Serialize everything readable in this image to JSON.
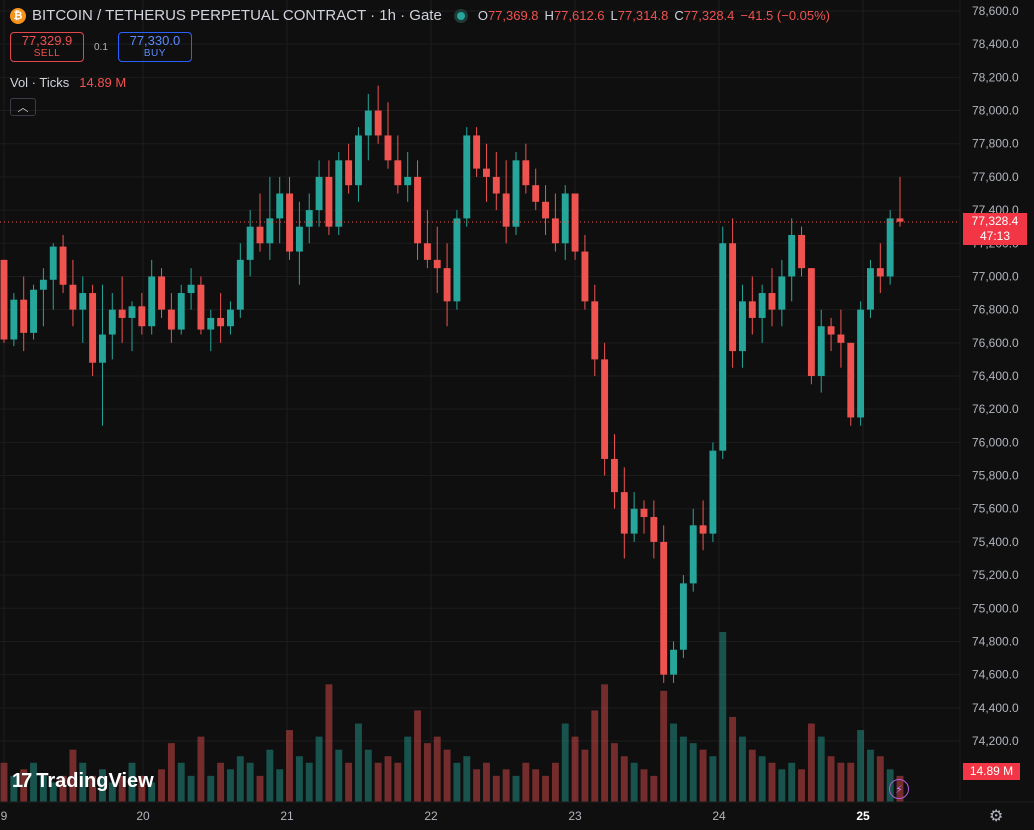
{
  "header": {
    "icon": "bitcoin-icon",
    "title": "BITCOIN / TETHERUS PERPETUAL CONTRACT · 1h · Gate",
    "ohlc": {
      "o_label": "O",
      "o": "77,369.8",
      "h_label": "H",
      "h": "77,612.6",
      "l_label": "L",
      "l": "77,314.8",
      "c_label": "C",
      "c": "77,328.4",
      "change": "−41.5 (−0.05%)"
    }
  },
  "trade": {
    "sell_price": "77,329.9",
    "sell_label": "SELL",
    "spread": "0.1",
    "buy_price": "77,330.0",
    "buy_label": "BUY"
  },
  "volume_legend": {
    "label": "Vol · Ticks",
    "value": "14.89 M"
  },
  "price_tag": {
    "price": "77,328.4",
    "countdown": "47:13"
  },
  "volume_tag": "14.89 M",
  "brand": "TradingView",
  "colors": {
    "up": "#26a69a",
    "down": "#ef5350",
    "accent": "#2962ff",
    "background": "#0f0f0f"
  },
  "icons": [
    "bitcoin-icon",
    "live-dot-icon",
    "chevron-up-icon",
    "tradingview-logo-icon",
    "lightning-icon",
    "gear-icon"
  ],
  "chart_data": {
    "type": "candlestick",
    "y_ticks": [
      78600,
      78400,
      78200,
      78000,
      77800,
      77600,
      77400,
      77200,
      77000,
      76800,
      76600,
      76400,
      76200,
      76000,
      75800,
      75600,
      75400,
      75200,
      75000,
      74800,
      74600,
      74400,
      74200
    ],
    "x_ticks": [
      "9",
      "20",
      "21",
      "22",
      "23",
      "24",
      "25"
    ],
    "ylim": [
      74000,
      78700
    ],
    "last_price": 77328.4,
    "current_price_line": 77328.4,
    "candles": [
      [
        77100,
        77100,
        76600,
        76620
      ],
      [
        76620,
        76900,
        76580,
        76860
      ],
      [
        76860,
        77000,
        76550,
        76660
      ],
      [
        76660,
        76950,
        76620,
        76920
      ],
      [
        76920,
        77050,
        76700,
        76980
      ],
      [
        76980,
        77200,
        76800,
        77180
      ],
      [
        77180,
        77250,
        76900,
        76950
      ],
      [
        76950,
        77100,
        76700,
        76800
      ],
      [
        76800,
        77000,
        76600,
        76900
      ],
      [
        76900,
        76950,
        76400,
        76480
      ],
      [
        76480,
        76950,
        76100,
        76650
      ],
      [
        76650,
        76900,
        76500,
        76800
      ],
      [
        76800,
        77000,
        76600,
        76750
      ],
      [
        76750,
        76850,
        76550,
        76820
      ],
      [
        76820,
        76900,
        76650,
        76700
      ],
      [
        76700,
        77100,
        76650,
        77000
      ],
      [
        77000,
        77050,
        76750,
        76800
      ],
      [
        76800,
        76900,
        76600,
        76680
      ],
      [
        76680,
        76950,
        76650,
        76900
      ],
      [
        76900,
        77050,
        76800,
        76950
      ],
      [
        76950,
        77000,
        76650,
        76680
      ],
      [
        76680,
        76800,
        76550,
        76750
      ],
      [
        76750,
        76900,
        76600,
        76700
      ],
      [
        76700,
        76850,
        76650,
        76800
      ],
      [
        76800,
        77200,
        76750,
        77100
      ],
      [
        77100,
        77400,
        77000,
        77300
      ],
      [
        77300,
        77500,
        77150,
        77200
      ],
      [
        77200,
        77600,
        77100,
        77350
      ],
      [
        77350,
        77600,
        77200,
        77500
      ],
      [
        77500,
        77600,
        77100,
        77150
      ],
      [
        77150,
        77450,
        76950,
        77300
      ],
      [
        77300,
        77500,
        77200,
        77400
      ],
      [
        77400,
        77700,
        77300,
        77600
      ],
      [
        77600,
        77700,
        77250,
        77300
      ],
      [
        77300,
        77750,
        77250,
        77700
      ],
      [
        77700,
        77800,
        77500,
        77550
      ],
      [
        77550,
        77900,
        77450,
        77850
      ],
      [
        77850,
        78100,
        77700,
        78000
      ],
      [
        78000,
        78150,
        77800,
        77850
      ],
      [
        77850,
        78050,
        77650,
        77700
      ],
      [
        77700,
        77850,
        77500,
        77550
      ],
      [
        77550,
        77750,
        77450,
        77600
      ],
      [
        77600,
        77700,
        77100,
        77200
      ],
      [
        77200,
        77400,
        77050,
        77100
      ],
      [
        77100,
        77300,
        76900,
        77050
      ],
      [
        77050,
        77200,
        76700,
        76850
      ],
      [
        76850,
        77400,
        76800,
        77350
      ],
      [
        77350,
        77900,
        77300,
        77850
      ],
      [
        77850,
        77900,
        77600,
        77650
      ],
      [
        77650,
        77800,
        77450,
        77600
      ],
      [
        77600,
        77750,
        77400,
        77500
      ],
      [
        77500,
        77700,
        77200,
        77300
      ],
      [
        77300,
        77750,
        77250,
        77700
      ],
      [
        77700,
        77800,
        77500,
        77550
      ],
      [
        77550,
        77650,
        77400,
        77450
      ],
      [
        77450,
        77550,
        77250,
        77350
      ],
      [
        77350,
        77500,
        77150,
        77200
      ],
      [
        77200,
        77550,
        77100,
        77500
      ],
      [
        77500,
        77500,
        77100,
        77150
      ],
      [
        77150,
        77250,
        76800,
        76850
      ],
      [
        76850,
        76950,
        76400,
        76500
      ],
      [
        76500,
        76600,
        75800,
        75900
      ],
      [
        75900,
        76050,
        75600,
        75700
      ],
      [
        75700,
        75850,
        75300,
        75450
      ],
      [
        75450,
        75700,
        75400,
        75600
      ],
      [
        75600,
        75650,
        75450,
        75550
      ],
      [
        75550,
        75650,
        75300,
        75400
      ],
      [
        75400,
        75500,
        74550,
        74600
      ],
      [
        74600,
        74800,
        74550,
        74750
      ],
      [
        74750,
        75200,
        74700,
        75150
      ],
      [
        75150,
        75600,
        75100,
        75500
      ],
      [
        75500,
        75650,
        75350,
        75450
      ],
      [
        75450,
        76000,
        75400,
        75950
      ],
      [
        75950,
        77300,
        75900,
        77200
      ],
      [
        77200,
        77350,
        76450,
        76550
      ],
      [
        76550,
        76950,
        76450,
        76850
      ],
      [
        76850,
        77000,
        76650,
        76750
      ],
      [
        76750,
        76950,
        76600,
        76900
      ],
      [
        76900,
        77050,
        76700,
        76800
      ],
      [
        76800,
        77100,
        76700,
        77000
      ],
      [
        77000,
        77350,
        76850,
        77250
      ],
      [
        77250,
        77300,
        77000,
        77050
      ],
      [
        77050,
        77050,
        76350,
        76400
      ],
      [
        76400,
        76800,
        76300,
        76700
      ],
      [
        76700,
        76750,
        76550,
        76650
      ],
      [
        76650,
        76800,
        76450,
        76600
      ],
      [
        76600,
        76600,
        76100,
        76150
      ],
      [
        76150,
        76850,
        76100,
        76800
      ],
      [
        76800,
        77100,
        76750,
        77050
      ],
      [
        77050,
        77200,
        76900,
        77000
      ],
      [
        77000,
        77400,
        76950,
        77350
      ],
      [
        77350,
        77600,
        77300,
        77330
      ]
    ],
    "volumes": [
      0.3,
      0.2,
      0.25,
      0.3,
      0.2,
      0.15,
      0.2,
      0.4,
      0.3,
      0.2,
      0.25,
      0.15,
      0.2,
      0.3,
      0.2,
      0.15,
      0.25,
      0.45,
      0.3,
      0.2,
      0.5,
      0.2,
      0.3,
      0.25,
      0.35,
      0.3,
      0.2,
      0.4,
      0.25,
      0.55,
      0.35,
      0.3,
      0.5,
      0.9,
      0.4,
      0.3,
      0.6,
      0.4,
      0.3,
      0.35,
      0.3,
      0.5,
      0.7,
      0.45,
      0.5,
      0.4,
      0.3,
      0.35,
      0.25,
      0.3,
      0.2,
      0.25,
      0.2,
      0.3,
      0.25,
      0.2,
      0.3,
      0.6,
      0.5,
      0.4,
      0.7,
      0.9,
      0.45,
      0.35,
      0.3,
      0.25,
      0.2,
      0.85,
      0.6,
      0.5,
      0.45,
      0.4,
      0.35,
      1.3,
      0.65,
      0.5,
      0.4,
      0.35,
      0.3,
      0.25,
      0.3,
      0.25,
      0.6,
      0.5,
      0.35,
      0.3,
      0.3,
      0.55,
      0.4,
      0.35,
      0.25,
      0.2
    ]
  }
}
